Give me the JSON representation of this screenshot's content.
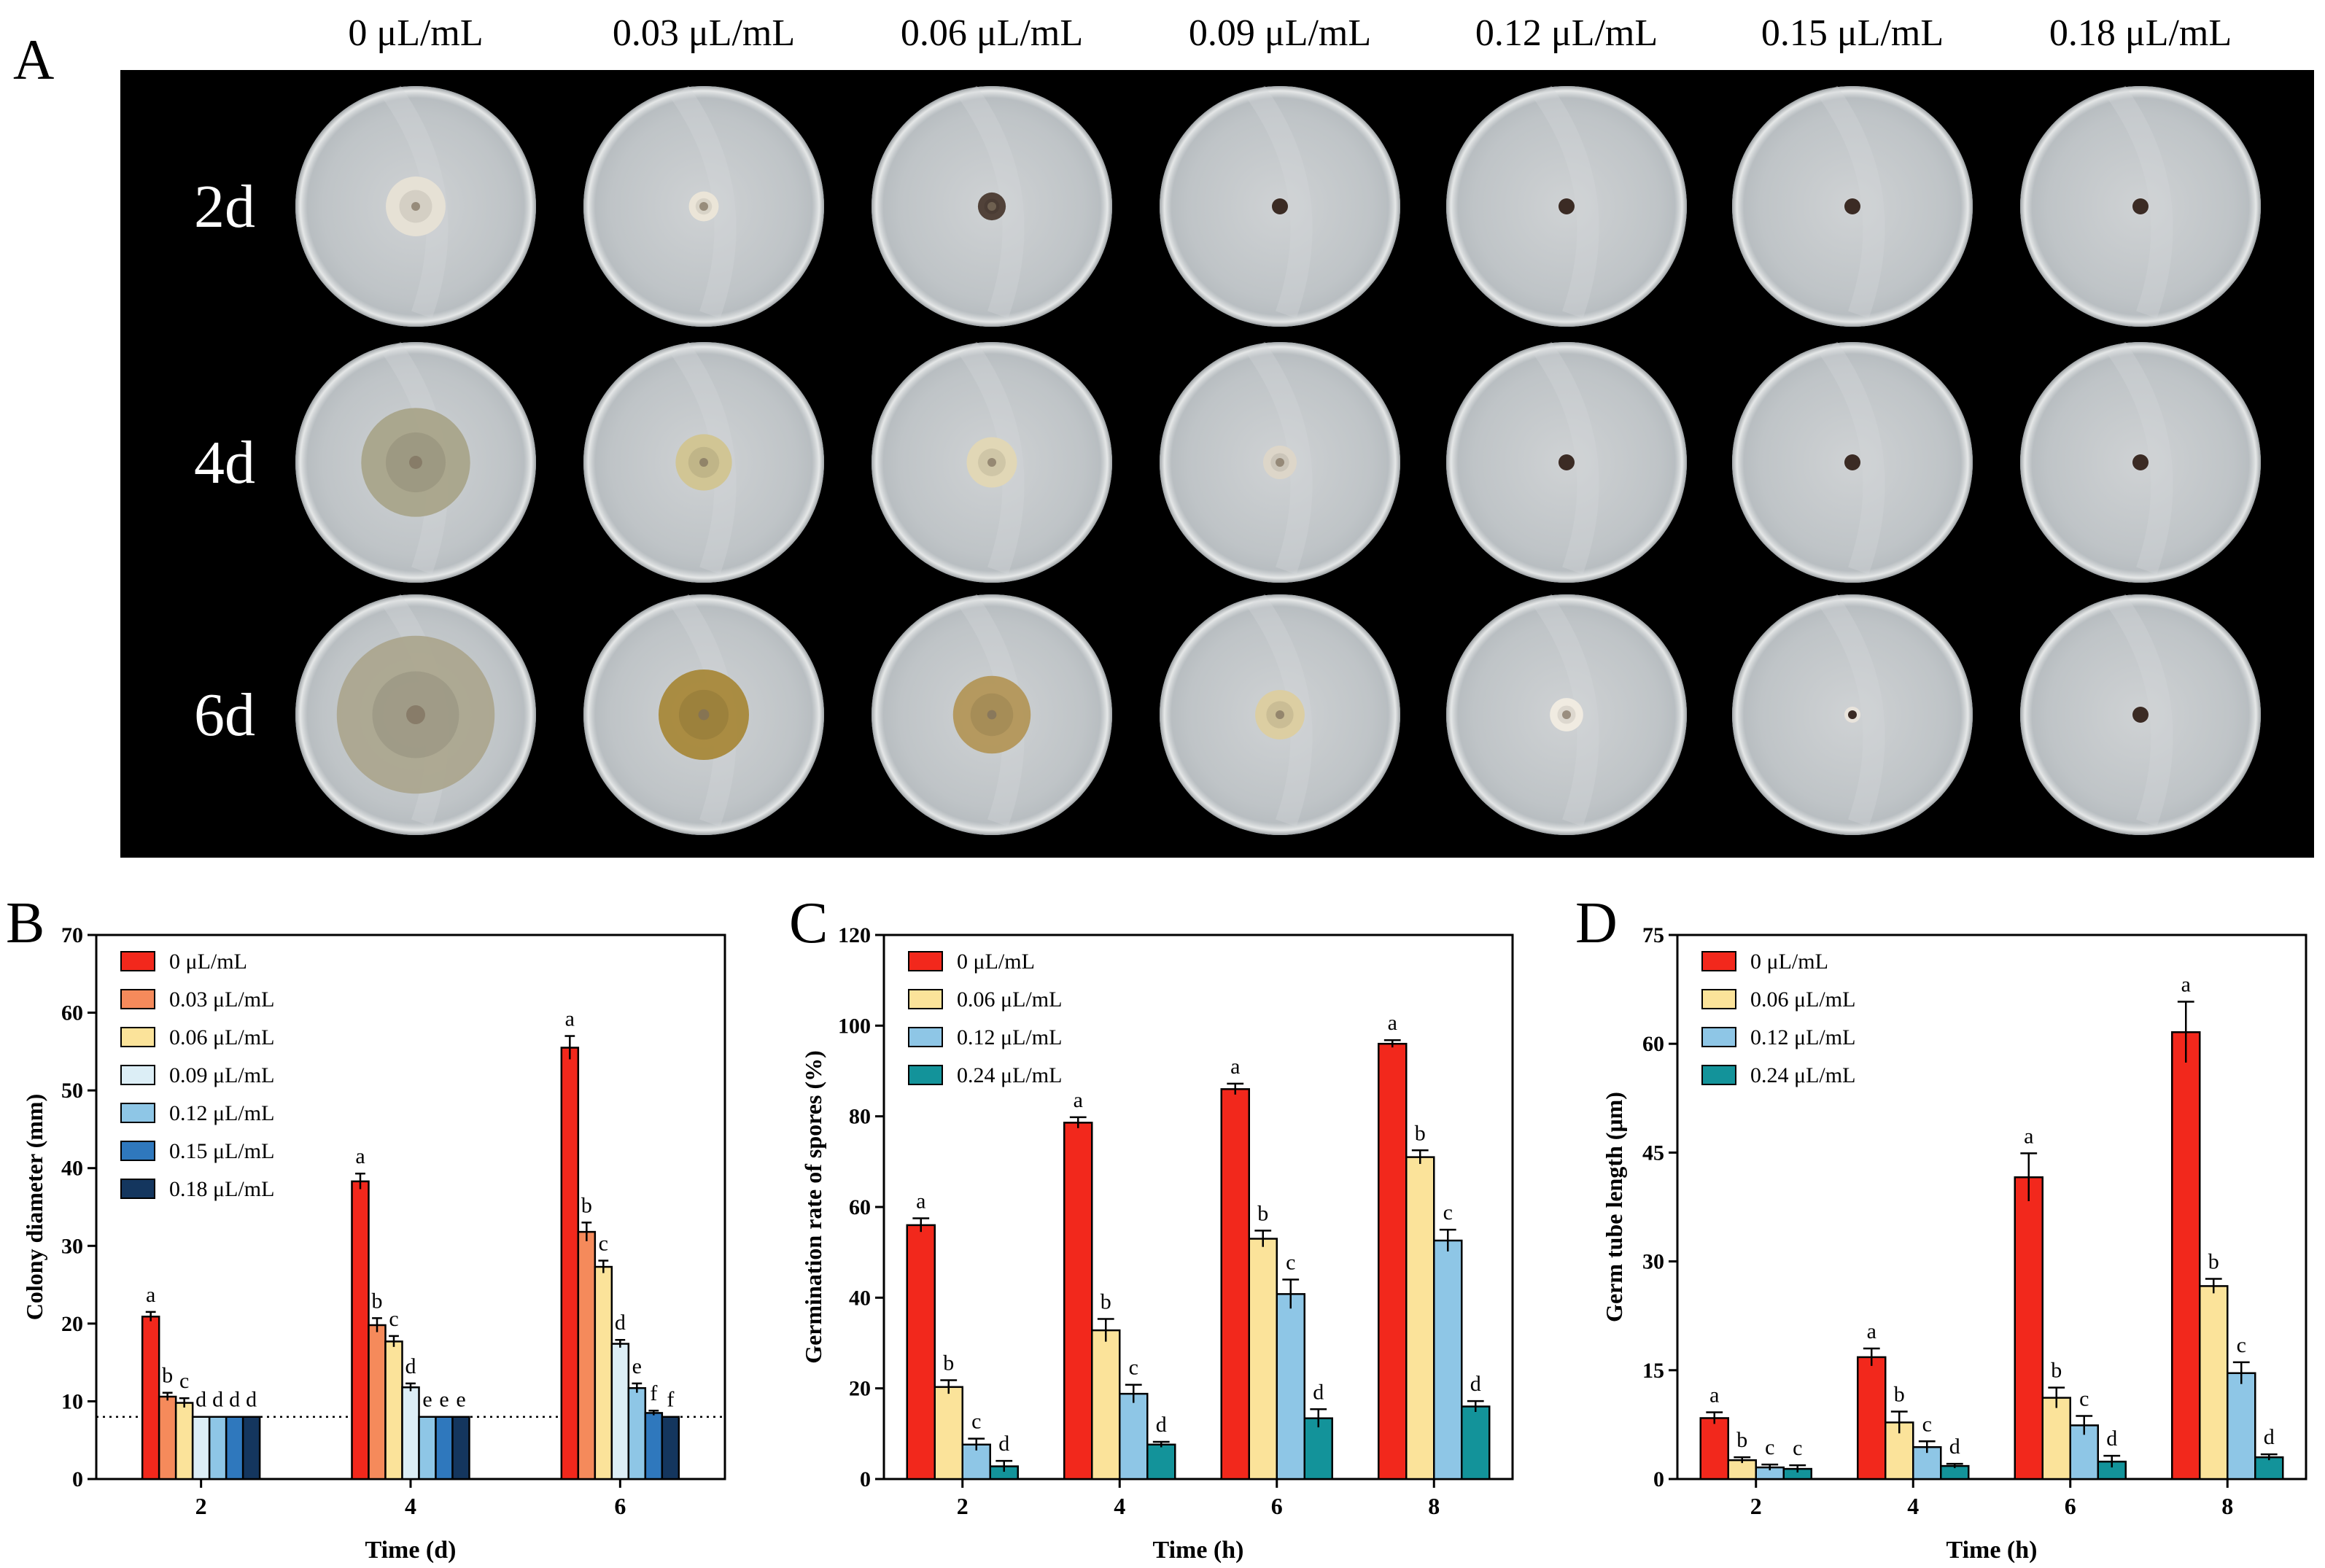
{
  "panel_a": {
    "label": "A",
    "columns": [
      "0 μL/mL",
      "0.03 μL/mL",
      "0.06 μL/mL",
      "0.09 μL/mL",
      "0.12 μL/mL",
      "0.15 μL/mL",
      "0.18 μL/mL"
    ],
    "rows": [
      "2d",
      "4d",
      "6d"
    ],
    "colony_diameter_mm": [
      [
        21,
        10.5,
        9.8,
        8,
        8,
        8,
        8
      ],
      [
        38.3,
        19.8,
        17.7,
        11.8,
        8,
        8,
        8
      ],
      [
        55.5,
        31.8,
        27.3,
        17.4,
        11.7,
        8.5,
        8
      ]
    ],
    "colony_colors": [
      [
        "#e7e1d5",
        "#ece6d8",
        "#4a3a30",
        "#3b2b24",
        "#3b2b24",
        "#3b2b24",
        "#3b2b24"
      ],
      [
        "#a9a48a",
        "#d1c490",
        "#e2d7b4",
        "#ddd6c8",
        "#3b2b24",
        "#3b2b24",
        "#3b2b24"
      ],
      [
        "#aca78f",
        "#a8883a",
        "#b39659",
        "#dccd9f",
        "#f1ece1",
        "#e9e4dc",
        "#3b2b24"
      ]
    ]
  },
  "chart_data": [
    {
      "panel_label": "B",
      "type": "bar",
      "xlabel": "Time (d)",
      "ylabel": "Colony diameter (mm)",
      "categories": [
        "2",
        "4",
        "6"
      ],
      "ylim": [
        0,
        70
      ],
      "yticks": [
        0,
        10,
        20,
        30,
        40,
        50,
        60,
        70
      ],
      "reference_line": 8,
      "series": [
        {
          "name": "0 μL/mL",
          "color": "#f2281c",
          "values": [
            20.9,
            38.3,
            55.5
          ],
          "errors": [
            0.6,
            1.0,
            1.5
          ],
          "letters": [
            "a",
            "a",
            "a"
          ]
        },
        {
          "name": "0.03 μL/mL",
          "color": "#f58a5b",
          "values": [
            10.6,
            19.8,
            31.8
          ],
          "errors": [
            0.5,
            0.9,
            1.2
          ],
          "letters": [
            "b",
            "b",
            "b"
          ]
        },
        {
          "name": "0.06 μL/mL",
          "color": "#fbe39a",
          "values": [
            9.8,
            17.7,
            27.3
          ],
          "errors": [
            0.6,
            0.7,
            0.8
          ],
          "letters": [
            "c",
            "c",
            "c"
          ]
        },
        {
          "name": "0.09 μL/mL",
          "color": "#dceef6",
          "values": [
            8.0,
            11.8,
            17.4
          ],
          "errors": [
            0,
            0.5,
            0.5
          ],
          "letters": [
            "d",
            "d",
            "d"
          ]
        },
        {
          "name": "0.12 μL/mL",
          "color": "#8ec6e6",
          "values": [
            8.0,
            8.0,
            11.7
          ],
          "errors": [
            0,
            0,
            0.6
          ],
          "letters": [
            "d",
            "e",
            "e"
          ]
        },
        {
          "name": "0.15 μL/mL",
          "color": "#2f78bd",
          "values": [
            8.0,
            8.0,
            8.5
          ],
          "errors": [
            0,
            0,
            0.3
          ],
          "letters": [
            "d",
            "e",
            "f"
          ]
        },
        {
          "name": "0.18 μL/mL",
          "color": "#14365e",
          "values": [
            8.0,
            8.0,
            8.0
          ],
          "errors": [
            0,
            0,
            0
          ],
          "letters": [
            "d",
            "e",
            "f"
          ]
        }
      ]
    },
    {
      "panel_label": "C",
      "type": "bar",
      "xlabel": "Time (h)",
      "ylabel": "Germination rate of spores (%)",
      "categories": [
        "2",
        "4",
        "6",
        "8"
      ],
      "ylim": [
        0,
        120
      ],
      "yticks": [
        0,
        20,
        40,
        60,
        80,
        100,
        120
      ],
      "series": [
        {
          "name": "0 μL/mL",
          "color": "#f2281c",
          "values": [
            56.0,
            78.6,
            86.0,
            96.0
          ],
          "errors": [
            1.5,
            1.2,
            1.2,
            0.8
          ],
          "letters": [
            "a",
            "a",
            "a",
            "a"
          ]
        },
        {
          "name": "0.06 μL/mL",
          "color": "#fbe39a",
          "values": [
            20.3,
            32.8,
            53.0,
            71.0
          ],
          "errors": [
            1.5,
            2.5,
            1.8,
            1.5
          ],
          "letters": [
            "b",
            "b",
            "b",
            "b"
          ]
        },
        {
          "name": "0.12 μL/mL",
          "color": "#8ec6e6",
          "values": [
            7.6,
            18.8,
            40.8,
            52.6
          ],
          "errors": [
            1.3,
            2.0,
            3.2,
            2.4
          ],
          "letters": [
            "c",
            "c",
            "c",
            "c"
          ]
        },
        {
          "name": "0.24 μL/mL",
          "color": "#13939a",
          "values": [
            2.8,
            7.6,
            13.4,
            16.0
          ],
          "errors": [
            1.2,
            0.6,
            2.0,
            1.2
          ],
          "letters": [
            "d",
            "d",
            "d",
            "d"
          ]
        }
      ]
    },
    {
      "panel_label": "D",
      "type": "bar",
      "xlabel": "Time (h)",
      "ylabel": "Germ tube length (μm)",
      "categories": [
        "2",
        "4",
        "6",
        "8"
      ],
      "ylim": [
        0,
        75
      ],
      "yticks": [
        0,
        15,
        30,
        45,
        60,
        75
      ],
      "series": [
        {
          "name": "0 μL/mL",
          "color": "#f2281c",
          "values": [
            8.4,
            16.8,
            41.6,
            61.6
          ],
          "errors": [
            0.8,
            1.2,
            3.3,
            4.2
          ],
          "letters": [
            "a",
            "a",
            "a",
            "a"
          ]
        },
        {
          "name": "0.06 μL/mL",
          "color": "#fbe39a",
          "values": [
            2.6,
            7.8,
            11.2,
            26.6
          ],
          "errors": [
            0.4,
            1.5,
            1.4,
            1.0
          ],
          "letters": [
            "b",
            "b",
            "b",
            "b"
          ]
        },
        {
          "name": "0.12 μL/mL",
          "color": "#8ec6e6",
          "values": [
            1.6,
            4.4,
            7.4,
            14.6
          ],
          "errors": [
            0.4,
            0.8,
            1.3,
            1.5
          ],
          "letters": [
            "c",
            "c",
            "c",
            "c"
          ]
        },
        {
          "name": "0.24 μL/mL",
          "color": "#13939a",
          "values": [
            1.4,
            1.8,
            2.4,
            3.0
          ],
          "errors": [
            0.5,
            0.3,
            0.8,
            0.4
          ],
          "letters": [
            "c",
            "d",
            "d",
            "d"
          ]
        }
      ]
    }
  ]
}
